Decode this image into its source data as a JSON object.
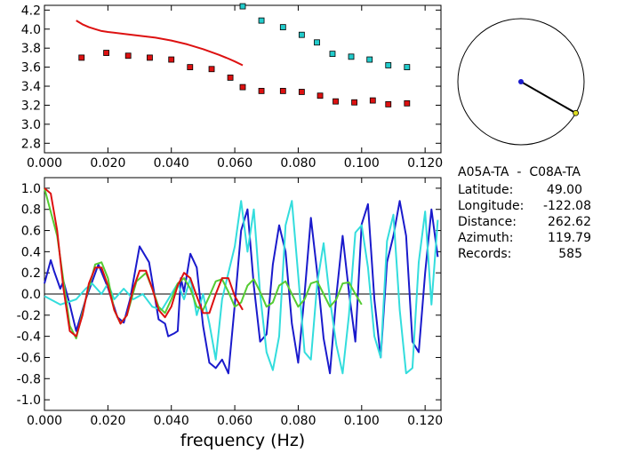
{
  "info": {
    "station_pair": "A05A-TA  -  C08A-TA",
    "rows": [
      {
        "label": "Latitude:",
        "value": "49.00"
      },
      {
        "label": "Longitude:",
        "value": "-122.08"
      },
      {
        "label": "Distance:",
        "value": "262.62"
      },
      {
        "label": "Azimuth:",
        "value": "119.79"
      },
      {
        "label": "Records:",
        "value": "585"
      }
    ],
    "azimuth_deg": 119.79
  },
  "chart_data": [
    {
      "type": "scatter",
      "xlim": [
        0.0,
        0.125
      ],
      "ylim": [
        2.7,
        4.25
      ],
      "xticks": [
        "0.000",
        "0.020",
        "0.040",
        "0.060",
        "0.080",
        "0.100",
        "0.120"
      ],
      "yticks": [
        "2.8",
        "3.0",
        "3.2",
        "3.4",
        "3.6",
        "3.8",
        "4.0",
        "4.2"
      ],
      "series": [
        {
          "kind": "line",
          "color": "#dd1111",
          "x": [
            0.01,
            0.012,
            0.014,
            0.016,
            0.018,
            0.02,
            0.025,
            0.03,
            0.035,
            0.04,
            0.045,
            0.05,
            0.055,
            0.058,
            0.06,
            0.0625
          ],
          "y": [
            4.09,
            4.05,
            4.02,
            4.0,
            3.98,
            3.97,
            3.95,
            3.93,
            3.91,
            3.88,
            3.84,
            3.79,
            3.73,
            3.69,
            3.66,
            3.62
          ]
        },
        {
          "kind": "markers",
          "color": "#dd1111",
          "x": [
            0.0117,
            0.0195,
            0.0264,
            0.0332,
            0.04,
            0.0459,
            0.0527,
            0.0586,
            0.0625,
            0.0684,
            0.0752,
            0.0811,
            0.0869,
            0.0918,
            0.0977,
            0.1035,
            0.1084,
            0.1143
          ],
          "y": [
            3.7,
            3.75,
            3.72,
            3.7,
            3.68,
            3.6,
            3.58,
            3.49,
            3.39,
            3.35,
            3.35,
            3.34,
            3.3,
            3.24,
            3.23,
            3.25,
            3.21,
            3.22
          ]
        },
        {
          "kind": "markers",
          "color": "#22cccc",
          "x": [
            0.0625,
            0.0684,
            0.0752,
            0.0811,
            0.0859,
            0.0908,
            0.0967,
            0.1025,
            0.1084,
            0.1143
          ],
          "y": [
            4.24,
            4.09,
            4.02,
            3.94,
            3.86,
            3.74,
            3.71,
            3.68,
            3.62,
            3.6
          ]
        }
      ]
    },
    {
      "type": "line",
      "xlabel": "frequency (Hz)",
      "xlim": [
        0.0,
        0.125
      ],
      "ylim": [
        -1.1,
        1.1
      ],
      "xticks": [
        "0.000",
        "0.020",
        "0.040",
        "0.060",
        "0.080",
        "0.100",
        "0.120"
      ],
      "yticks": [
        "1.0",
        "0.8",
        "0.6",
        "0.4",
        "0.2",
        "0.0",
        "-0.2",
        "-0.4",
        "-0.6",
        "-0.8",
        "-1.0"
      ],
      "series": [
        {
          "color": "#1a1acc",
          "x": [
            0.0,
            0.002,
            0.003,
            0.005,
            0.006,
            0.008,
            0.01,
            0.013,
            0.017,
            0.02,
            0.023,
            0.025,
            0.027,
            0.03,
            0.033,
            0.036,
            0.038,
            0.039,
            0.041,
            0.042,
            0.043,
            0.044,
            0.046,
            0.048,
            0.05,
            0.052,
            0.054,
            0.056,
            0.058,
            0.06,
            0.062,
            0.064,
            0.066,
            0.068,
            0.07,
            0.072,
            0.074,
            0.076,
            0.078,
            0.08,
            0.082,
            0.084,
            0.086,
            0.088,
            0.09,
            0.092,
            0.094,
            0.096,
            0.098,
            0.1,
            0.102,
            0.104,
            0.106,
            0.108,
            0.11,
            0.112,
            0.114,
            0.116,
            0.118,
            0.12,
            0.122,
            0.124
          ],
          "y": [
            0.1,
            0.32,
            0.22,
            0.05,
            0.12,
            -0.1,
            -0.35,
            -0.05,
            0.28,
            0.06,
            -0.22,
            -0.27,
            -0.05,
            0.45,
            0.3,
            -0.24,
            -0.28,
            -0.4,
            -0.37,
            -0.35,
            0.15,
            0.02,
            0.38,
            0.25,
            -0.3,
            -0.65,
            -0.7,
            -0.62,
            -0.75,
            -0.1,
            0.6,
            0.8,
            0.08,
            -0.45,
            -0.38,
            0.28,
            0.65,
            0.4,
            -0.28,
            -0.65,
            0.0,
            0.72,
            0.2,
            -0.42,
            -0.75,
            -0.02,
            0.55,
            0.02,
            -0.45,
            0.66,
            0.85,
            -0.05,
            -0.6,
            0.3,
            0.55,
            0.88,
            0.55,
            -0.45,
            -0.55,
            0.2,
            0.8,
            0.35
          ]
        },
        {
          "color": "#33dddd",
          "x": [
            0.0,
            0.005,
            0.01,
            0.013,
            0.015,
            0.018,
            0.02,
            0.022,
            0.025,
            0.028,
            0.031,
            0.034,
            0.037,
            0.039,
            0.042,
            0.044,
            0.046,
            0.048,
            0.05,
            0.052,
            0.054,
            0.056,
            0.058,
            0.06,
            0.062,
            0.064,
            0.066,
            0.068,
            0.07,
            0.072,
            0.074,
            0.076,
            0.078,
            0.08,
            0.082,
            0.084,
            0.086,
            0.088,
            0.09,
            0.092,
            0.094,
            0.096,
            0.098,
            0.1,
            0.102,
            0.104,
            0.106,
            0.108,
            0.11,
            0.112,
            0.114,
            0.116,
            0.118,
            0.12,
            0.122,
            0.124
          ],
          "y": [
            -0.02,
            -0.1,
            -0.05,
            0.05,
            0.1,
            0.0,
            0.1,
            -0.05,
            0.05,
            -0.05,
            0.0,
            -0.12,
            -0.15,
            -0.05,
            0.1,
            -0.05,
            0.15,
            -0.2,
            0.0,
            -0.28,
            -0.62,
            -0.05,
            0.2,
            0.45,
            0.88,
            0.4,
            0.8,
            0.0,
            -0.55,
            -0.72,
            -0.4,
            0.65,
            0.88,
            0.18,
            -0.55,
            -0.62,
            0.1,
            0.48,
            -0.05,
            -0.48,
            -0.75,
            -0.2,
            0.58,
            0.65,
            0.25,
            -0.4,
            -0.6,
            0.5,
            0.75,
            -0.15,
            -0.75,
            -0.7,
            0.3,
            0.78,
            -0.1,
            0.7
          ]
        },
        {
          "color": "#55cc33",
          "x": [
            0.0,
            0.004,
            0.008,
            0.01,
            0.013,
            0.016,
            0.018,
            0.02,
            0.022,
            0.024,
            0.026,
            0.029,
            0.032,
            0.034,
            0.036,
            0.038,
            0.04,
            0.042,
            0.044,
            0.046,
            0.048,
            0.05,
            0.052,
            0.054,
            0.056,
            0.058,
            0.06,
            0.062,
            0.064,
            0.066,
            0.068,
            0.07,
            0.072,
            0.074,
            0.076,
            0.078,
            0.08,
            0.082,
            0.084,
            0.086,
            0.088,
            0.09,
            0.092,
            0.094,
            0.096,
            0.098,
            0.1
          ],
          "y": [
            1.0,
            0.55,
            -0.3,
            -0.42,
            -0.05,
            0.28,
            0.3,
            0.15,
            -0.15,
            -0.28,
            -0.2,
            0.12,
            0.2,
            0.05,
            -0.12,
            -0.18,
            -0.05,
            0.1,
            0.15,
            0.05,
            -0.12,
            -0.15,
            -0.02,
            0.12,
            0.14,
            0.02,
            -0.12,
            -0.08,
            0.08,
            0.14,
            0.02,
            -0.12,
            -0.08,
            0.08,
            0.12,
            0.0,
            -0.12,
            -0.05,
            0.1,
            0.12,
            0.0,
            -0.12,
            -0.05,
            0.1,
            0.11,
            0.0,
            -0.1
          ]
        },
        {
          "color": "#dd1111",
          "x": [
            0.0,
            0.002,
            0.004,
            0.006,
            0.008,
            0.01,
            0.012,
            0.014,
            0.016,
            0.018,
            0.02,
            0.022,
            0.024,
            0.026,
            0.028,
            0.03,
            0.032,
            0.034,
            0.036,
            0.038,
            0.04,
            0.042,
            0.044,
            0.046,
            0.048,
            0.05,
            0.052,
            0.054,
            0.056,
            0.058,
            0.06,
            0.0625
          ],
          "y": [
            1.0,
            0.95,
            0.6,
            0.05,
            -0.35,
            -0.4,
            -0.2,
            0.1,
            0.25,
            0.25,
            0.08,
            -0.15,
            -0.28,
            -0.2,
            0.05,
            0.22,
            0.22,
            0.05,
            -0.15,
            -0.22,
            -0.12,
            0.08,
            0.2,
            0.15,
            -0.02,
            -0.18,
            -0.18,
            0.0,
            0.15,
            0.15,
            -0.02,
            -0.15
          ]
        }
      ]
    }
  ]
}
